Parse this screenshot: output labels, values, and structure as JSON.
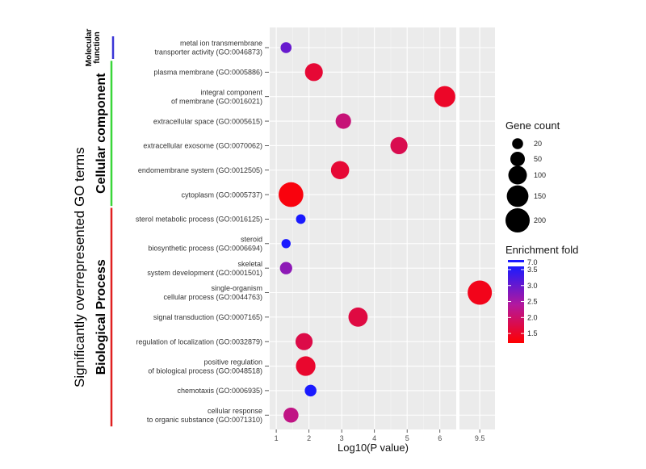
{
  "chart_data": {
    "type": "scatter",
    "title": "",
    "xlabel": "Log10(P value)",
    "ylabel": "Significantly overrepresented GO terms",
    "xlim": [
      0.8,
      9.8
    ],
    "x_break": [
      6.5,
      9.1
    ],
    "xticks": [
      1,
      2,
      3,
      4,
      5,
      6,
      9.5
    ],
    "xtick_labels": [
      "1",
      "2",
      "3",
      "4",
      "5",
      "6",
      "9.5"
    ],
    "categories": [
      {
        "label": "metal ion transmembrane\ntransporter activity (GO:0046873)",
        "x": 1.3,
        "count": 20,
        "fold": 3.0,
        "group": "Molecular function"
      },
      {
        "label": "plasma membrane (GO:0005886)",
        "x": 2.15,
        "count": 90,
        "fold": 1.6,
        "group": "Cellular component"
      },
      {
        "label": "integral component\nof membrane (GO:0016021)",
        "x": 6.15,
        "count": 140,
        "fold": 1.5,
        "group": "Cellular component"
      },
      {
        "label": "extracellular space (GO:0005615)",
        "x": 3.05,
        "count": 60,
        "fold": 2.1,
        "group": "Cellular component"
      },
      {
        "label": "extracellular exosome (GO:0070062)",
        "x": 4.75,
        "count": 80,
        "fold": 1.8,
        "group": "Cellular component"
      },
      {
        "label": "endomembrane system (GO:0012505)",
        "x": 2.95,
        "count": 95,
        "fold": 1.6,
        "group": "Cellular component"
      },
      {
        "label": "cytoplasm (GO:0005737)",
        "x": 1.45,
        "count": 210,
        "fold": 1.3,
        "group": "Cellular component"
      },
      {
        "label": "sterol metabolic process (GO:0016125)",
        "x": 1.75,
        "count": 12,
        "fold": 4.5,
        "group": "Biological Process"
      },
      {
        "label": "steroid\nbiosynthetic process (GO:0006694)",
        "x": 1.3,
        "count": 10,
        "fold": 5.5,
        "group": "Biological Process"
      },
      {
        "label": "skeletal\nsystem development (GO:0001501)",
        "x": 1.3,
        "count": 30,
        "fold": 2.7,
        "group": "Biological Process"
      },
      {
        "label": "single-organism\ncellular process (GO:0044763)",
        "x": 9.5,
        "count": 200,
        "fold": 1.4,
        "group": "Biological Process"
      },
      {
        "label": "signal transduction (GO:0007165)",
        "x": 3.5,
        "count": 110,
        "fold": 1.7,
        "group": "Biological Process"
      },
      {
        "label": "regulation of localization (GO:0032879)",
        "x": 1.85,
        "count": 80,
        "fold": 1.75,
        "group": "Biological Process"
      },
      {
        "label": "positive regulation\nof biological process (GO:0048518)",
        "x": 1.9,
        "count": 115,
        "fold": 1.55,
        "group": "Biological Process"
      },
      {
        "label": "chemotaxis (GO:0006935)",
        "x": 2.05,
        "count": 25,
        "fold": 3.6,
        "group": "Biological Process"
      },
      {
        "label": "cellular response\nto organic substance (GO:0071310)",
        "x": 1.45,
        "count": 55,
        "fold": 2.2,
        "group": "Biological Process"
      }
    ],
    "groups": [
      {
        "name": "Molecular\nfunction",
        "color": "#3a35d6",
        "first": 0,
        "last": 0
      },
      {
        "name": "Cellular component",
        "color": "#3ad63a",
        "first": 1,
        "last": 6
      },
      {
        "name": "Biological Process",
        "color": "#e02020",
        "first": 7,
        "last": 15
      }
    ],
    "size_legend": {
      "title": "Gene count",
      "values": [
        20,
        50,
        100,
        150,
        200
      ],
      "labels": [
        "20",
        "50",
        "100",
        "150",
        "200"
      ]
    },
    "color_legend": {
      "title": "Enrichment fold",
      "break_value": "7.0",
      "labels": [
        "3.5",
        "3.0",
        "2.5",
        "2.0",
        "1.5"
      ],
      "values": [
        3.5,
        3.0,
        2.5,
        2.0,
        1.5
      ],
      "range": [
        1.2,
        3.6
      ],
      "colors": {
        "high": "#1a1aff",
        "mid": "#b3189e",
        "low": "#ff0000"
      }
    }
  }
}
